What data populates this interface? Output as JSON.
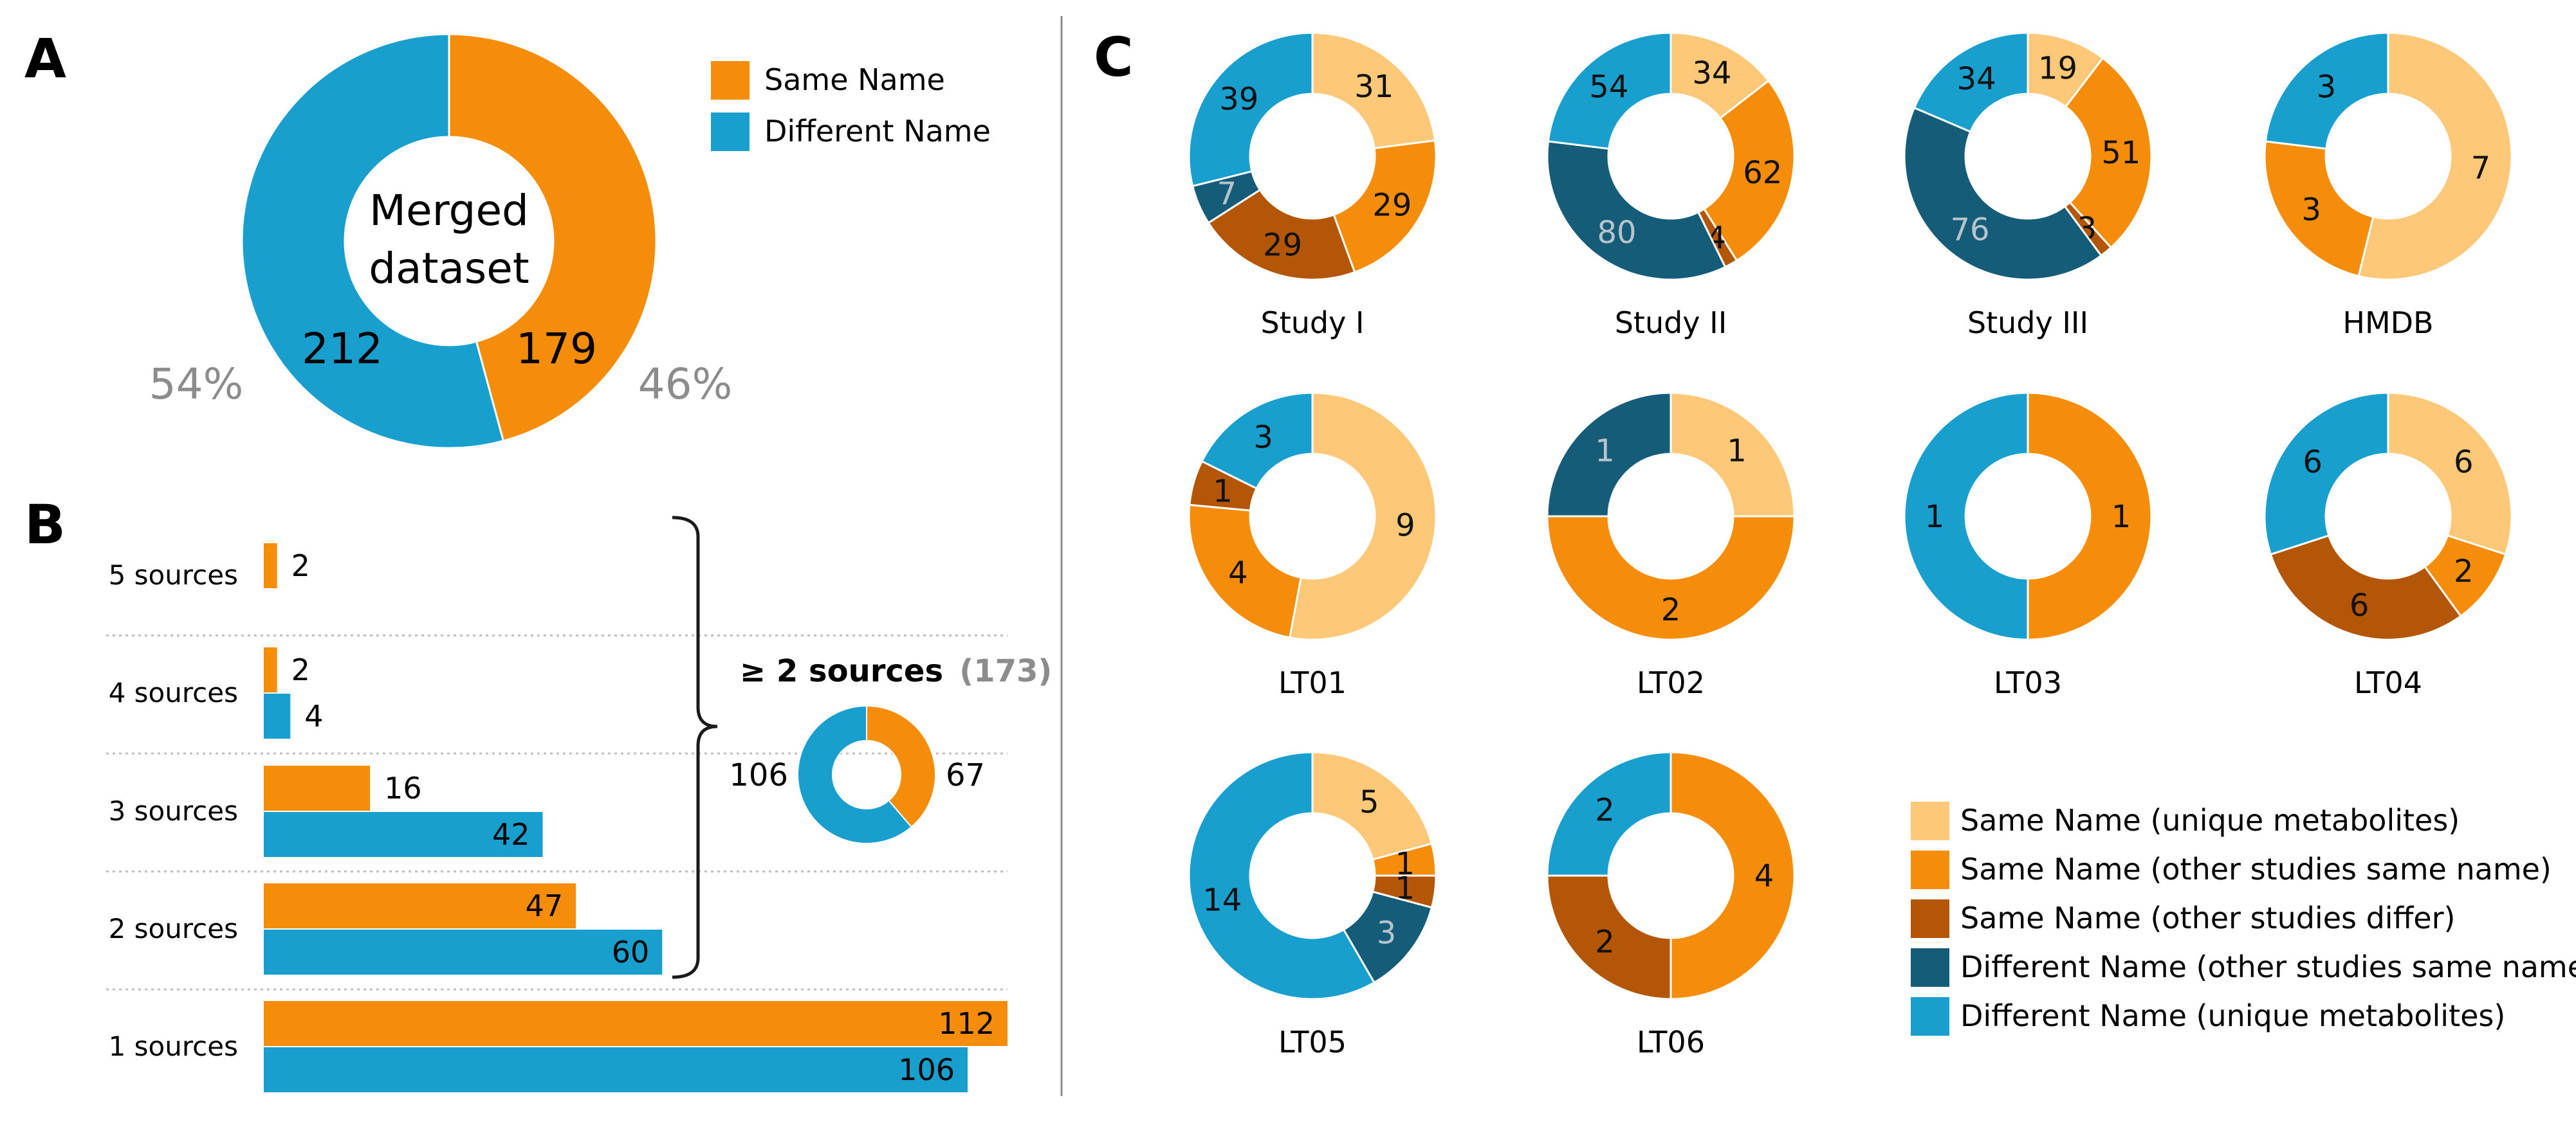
{
  "colors": {
    "same_name": "#F58D0A",
    "different_name": "#199FCE",
    "cat_same_unique": "#FDC877",
    "cat_same_same": "#F58D0A",
    "cat_same_differ": "#B45607",
    "cat_diff_same": "#145C78",
    "cat_diff_unique": "#199FCE",
    "divider": "#8C8C8C",
    "pct_text": "#8C8C8C"
  },
  "panels": {
    "a": "A",
    "b": "B",
    "c": "C"
  },
  "chart_data": [
    {
      "id": "A",
      "type": "pie",
      "subtype": "donut",
      "center_label_lines": [
        "Merged",
        "dataset"
      ],
      "slices": [
        {
          "name": "Same Name",
          "value": 179,
          "percent_label": "46%"
        },
        {
          "name": "Different Name",
          "value": 212,
          "percent_label": "54%"
        }
      ],
      "legend": [
        "Same Name",
        "Different Name"
      ],
      "legend_position": "top-right"
    },
    {
      "id": "B",
      "type": "bar",
      "orientation": "horizontal",
      "categories": [
        "5 sources",
        "4 sources",
        "3 sources",
        "2 sources",
        "1 sources"
      ],
      "series": [
        {
          "name": "Same Name",
          "values": [
            2,
            2,
            16,
            47,
            112
          ]
        },
        {
          "name": "Different Name",
          "values": [
            null,
            4,
            42,
            60,
            106
          ]
        }
      ],
      "xlim": [
        0,
        112
      ],
      "summary": {
        "label": "≥ 2 sources",
        "total_label": "(173)",
        "donut": [
          {
            "name": "Same Name",
            "value": 67
          },
          {
            "name": "Different Name",
            "value": 106
          }
        ]
      }
    },
    {
      "id": "C",
      "type": "pie",
      "subtype": "donut-grid",
      "legend": [
        "Same Name (unique metabolites)",
        "Same Name (other studies same name)",
        "Same Name (other studies differ)",
        "Different Name (other studies same name)",
        "Different Name (unique metabolites)"
      ],
      "legend_position": "bottom-right",
      "donuts": [
        {
          "title": "Study I",
          "values": [
            31,
            29,
            29,
            7,
            39
          ]
        },
        {
          "title": "Study II",
          "values": [
            34,
            62,
            4,
            80,
            54
          ]
        },
        {
          "title": "Study III",
          "values": [
            19,
            51,
            3,
            76,
            34
          ]
        },
        {
          "title": "HMDB",
          "values": [
            7,
            3,
            0,
            0,
            3
          ]
        },
        {
          "title": "LT01",
          "values": [
            9,
            4,
            1,
            0,
            3
          ]
        },
        {
          "title": "LT02",
          "values": [
            1,
            2,
            0,
            1,
            0
          ]
        },
        {
          "title": "LT03",
          "values": [
            0,
            1,
            0,
            0,
            1
          ]
        },
        {
          "title": "LT04",
          "values": [
            6,
            2,
            6,
            0,
            6
          ]
        },
        {
          "title": "LT05",
          "values": [
            5,
            1,
            1,
            3,
            14
          ]
        },
        {
          "title": "LT06",
          "values": [
            0,
            4,
            2,
            0,
            2
          ]
        }
      ]
    }
  ]
}
